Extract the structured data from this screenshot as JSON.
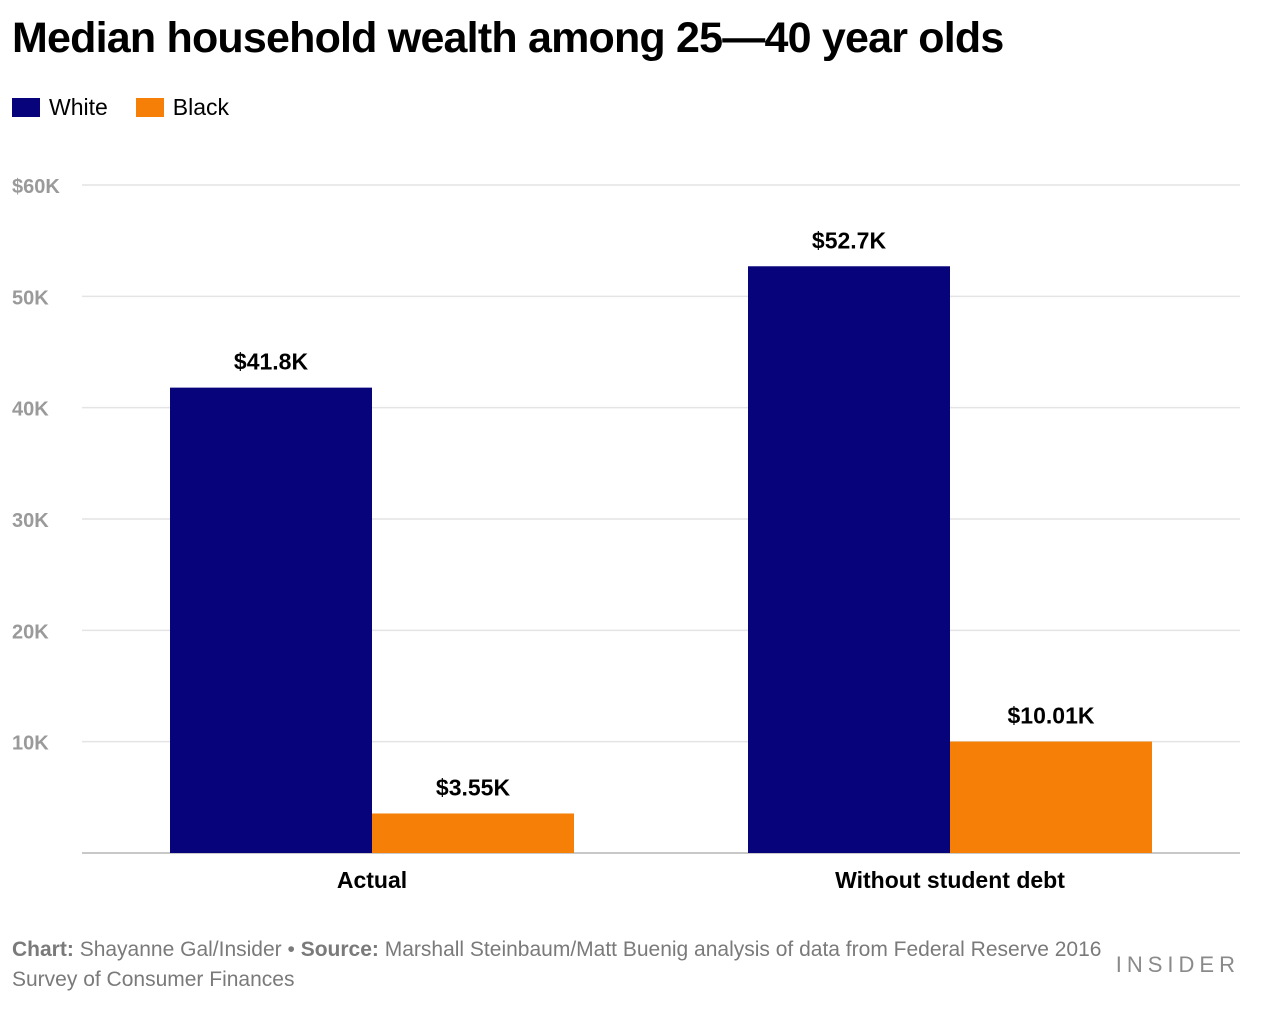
{
  "title": "Median household wealth among 25—40 year olds",
  "legend": [
    {
      "label": "White",
      "color": "#07037a"
    },
    {
      "label": "Black",
      "color": "#f57f07"
    }
  ],
  "chart_data": {
    "type": "bar",
    "title": "Median household wealth among 25—40 year olds",
    "xlabel": "",
    "ylabel": "",
    "categories": [
      "Actual",
      "Without student debt"
    ],
    "series": [
      {
        "name": "White",
        "color": "#07037a",
        "values": [
          41.8,
          52.7
        ],
        "labels": [
          "$41.8K",
          "$52.7K"
        ]
      },
      {
        "name": "Black",
        "color": "#f57f07",
        "values": [
          3.55,
          10.01
        ],
        "labels": [
          "$3.55K",
          "$10.01K"
        ]
      }
    ],
    "ylim": [
      0,
      60
    ],
    "yticks": [
      {
        "value": 10,
        "label": "10K"
      },
      {
        "value": 20,
        "label": "20K"
      },
      {
        "value": 30,
        "label": "30K"
      },
      {
        "value": 40,
        "label": "40K"
      },
      {
        "value": 50,
        "label": "50K"
      },
      {
        "value": 60,
        "label": "$60K"
      }
    ],
    "grid": true,
    "legend_position": "top-left"
  },
  "footer": {
    "chart_label": "Chart:",
    "chart_text": "Shayanne Gal/Insider",
    "separator": "•",
    "source_label": "Source:",
    "source_text": "Marshall Steinbaum/Matt Buenig analysis of data from Federal Reserve 2016 Survey of Consumer Finances"
  },
  "brand": "INSIDER"
}
